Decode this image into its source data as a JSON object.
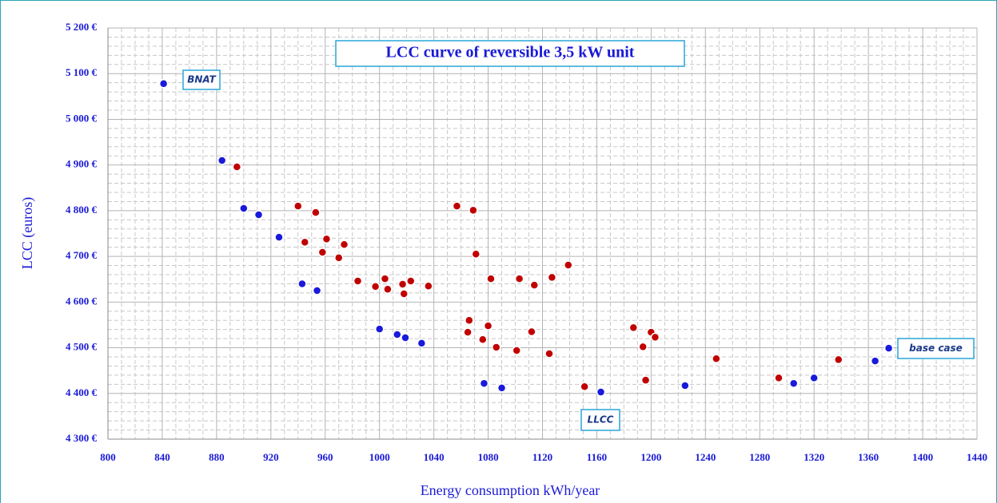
{
  "chart_data": {
    "type": "scatter",
    "title": "LCC curve of reversible 3,5 kW unit",
    "x_label": "Energy consumption kWh/year",
    "y_label": "LCC (euros)",
    "xlim": [
      800,
      1440
    ],
    "ylim": [
      4300,
      5200
    ],
    "xticks": [
      800,
      840,
      880,
      920,
      960,
      1000,
      1040,
      1080,
      1120,
      1160,
      1200,
      1240,
      1280,
      1320,
      1360,
      1400,
      1440
    ],
    "yticks": [
      {
        "value": 4300,
        "label": "4 300 €"
      },
      {
        "value": 4400,
        "label": "4 400 €"
      },
      {
        "value": 4500,
        "label": "4 500 €"
      },
      {
        "value": 4600,
        "label": "4 600 €"
      },
      {
        "value": 4700,
        "label": "4 700 €"
      },
      {
        "value": 4800,
        "label": "4 800 €"
      },
      {
        "value": 4900,
        "label": "4 900 €"
      },
      {
        "value": 5000,
        "label": "5 000 €"
      },
      {
        "value": 5100,
        "label": "5 100 €"
      },
      {
        "value": 5200,
        "label": "5 200 €"
      }
    ],
    "grid": true,
    "series": [
      {
        "color": "#1a1adb",
        "x": [
          841,
          884,
          900,
          911,
          926,
          943,
          954,
          1000,
          1013,
          1019,
          1031,
          1077,
          1090,
          1163,
          1225,
          1305,
          1320,
          1365,
          1375
        ],
        "y": [
          5078,
          4910,
          4805,
          4791,
          4742,
          4640,
          4625,
          4541,
          4529,
          4522,
          4510,
          4422,
          4412,
          4403,
          4417,
          4422,
          4434,
          4471,
          4499
        ]
      },
      {
        "color": "#c00000",
        "x": [
          895,
          940,
          953,
          945,
          961,
          958,
          970,
          974,
          984,
          997,
          1004,
          1006,
          1017,
          1018,
          1023,
          1036,
          1057,
          1069,
          1071,
          1066,
          1065,
          1076,
          1080,
          1082,
          1086,
          1103,
          1101,
          1114,
          1112,
          1125,
          1127,
          1139,
          1151,
          1187,
          1194,
          1196,
          1200,
          1203,
          1248,
          1294,
          1338
        ],
        "y": [
          4896,
          4810,
          4796,
          4731,
          4738,
          4709,
          4697,
          4726,
          4646,
          4634,
          4651,
          4628,
          4639,
          4618,
          4646,
          4635,
          4810,
          4801,
          4705,
          4560,
          4534,
          4518,
          4548,
          4651,
          4501,
          4651,
          4494,
          4637,
          4535,
          4487,
          4654,
          4681,
          4415,
          4544,
          4502,
          4429,
          4534,
          4523,
          4476,
          4434,
          4474
        ]
      }
    ],
    "annotations": [
      "BNAT",
      "LLCC",
      "base case"
    ]
  }
}
